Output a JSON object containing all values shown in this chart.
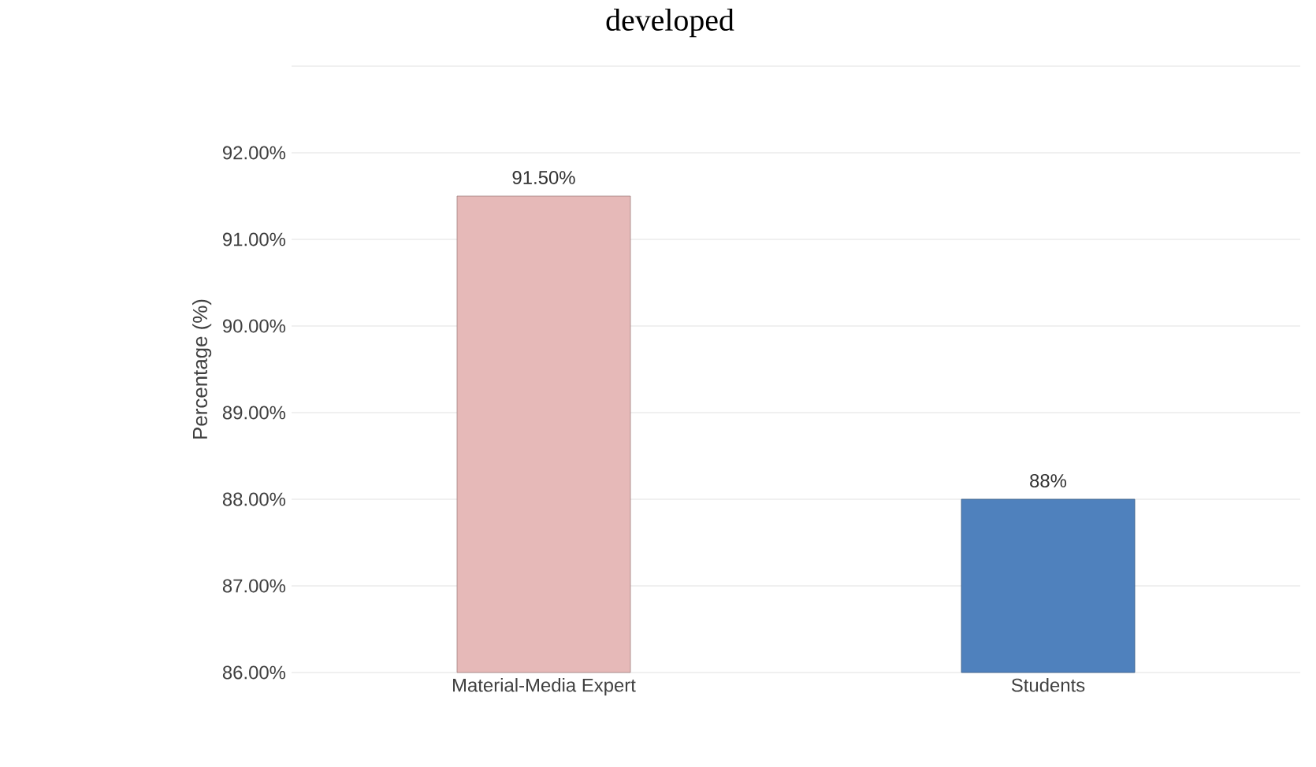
{
  "chart_data": {
    "type": "bar",
    "title": "developed",
    "ylabel": "Percentage (%)",
    "categories": [
      "Material-Media Expert",
      "Students"
    ],
    "values": [
      91.5,
      88
    ],
    "colors": [
      "#e6b9b8",
      "#4f81bd"
    ],
    "value_labels": [
      "91.50%",
      "88%"
    ],
    "ylim": [
      86,
      93
    ],
    "yticks": [
      {
        "value": 86,
        "label": "86.00%"
      },
      {
        "value": 87,
        "label": "87.00%"
      },
      {
        "value": 88,
        "label": "88.00%"
      },
      {
        "value": 89,
        "label": "89.00%"
      },
      {
        "value": 90,
        "label": "90.00%"
      },
      {
        "value": 91,
        "label": "91.00%"
      },
      {
        "value": 92,
        "label": "92.00%"
      },
      {
        "value": 93,
        "label": null
      }
    ],
    "grid": "y"
  }
}
